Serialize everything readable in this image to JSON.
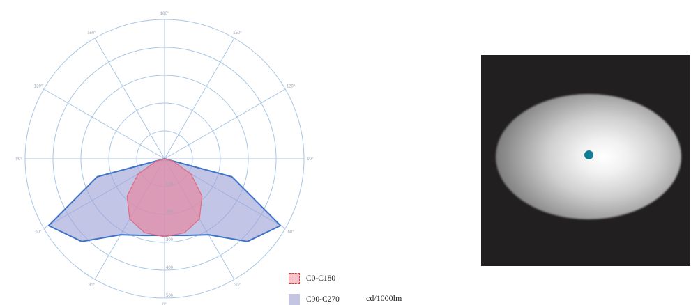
{
  "chart_data": {
    "type": "polar",
    "unit": "cd/1000lm",
    "angles": [
      0,
      15,
      30,
      45,
      60,
      75,
      90
    ],
    "series": [
      {
        "name": "C0-C180",
        "color": "#e7879f",
        "line_color": "#e06a82",
        "values": [
          280,
          275,
          250,
          190,
          110,
          30,
          0
        ]
      },
      {
        "name": "C90-C270",
        "color": "#9da1d6",
        "line_color": "#3f73c6",
        "values": [
          275,
          285,
          315,
          420,
          480,
          250,
          0
        ]
      }
    ],
    "radial_ticks": [
      "100",
      "200",
      "300",
      "400",
      "500"
    ],
    "rmax": 500,
    "angle_labels": [
      {
        "angle": 0,
        "text": "180°"
      },
      {
        "angle": 30,
        "text": "150°"
      },
      {
        "angle": 60,
        "text": "120°"
      },
      {
        "angle": 90,
        "text": "90°"
      },
      {
        "angle": 120,
        "text": "60°"
      },
      {
        "angle": 150,
        "text": "30°"
      },
      {
        "angle": 180,
        "text": "0°"
      },
      {
        "angle": 210,
        "text": "30°"
      },
      {
        "angle": 240,
        "text": "60°"
      },
      {
        "angle": 270,
        "text": "90°"
      },
      {
        "angle": 300,
        "text": "120°"
      },
      {
        "angle": 330,
        "text": "150°"
      }
    ],
    "grid": true
  },
  "legend": {
    "c0_label": "C0-C180",
    "c90_label": "C90-C270"
  },
  "colors": {
    "grid_line": "#a9c6e4",
    "beam_background": "#221f20",
    "center_dot": "#0f7d93"
  }
}
